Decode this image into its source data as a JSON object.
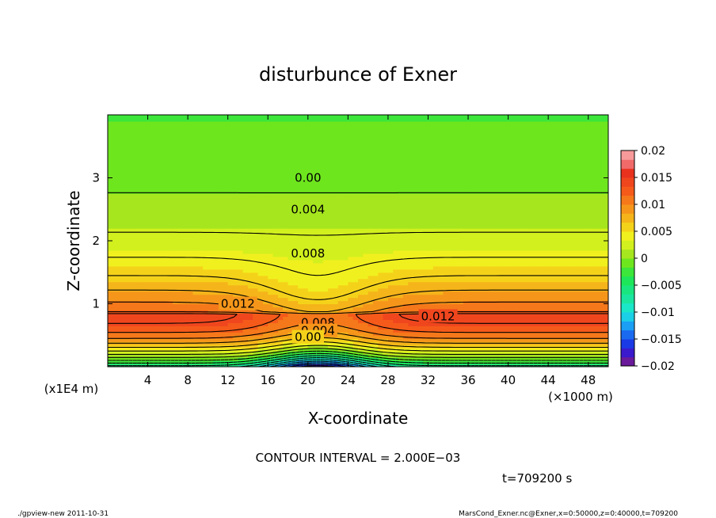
{
  "chart_data": {
    "type": "heatmap",
    "title": "disturbunce of Exner",
    "xlabel": "X-coordinate",
    "ylabel": "Z-coordinate",
    "x_scale_note": "(×1000 m)",
    "y_scale_note": "(x1E4 m)",
    "xlim": [
      0,
      50000
    ],
    "ylim": [
      0,
      40000
    ],
    "x_ticks": [
      {
        "value": 4000,
        "label": "4"
      },
      {
        "value": 8000,
        "label": "8"
      },
      {
        "value": 12000,
        "label": "12"
      },
      {
        "value": 16000,
        "label": "16"
      },
      {
        "value": 20000,
        "label": "20"
      },
      {
        "value": 24000,
        "label": "24"
      },
      {
        "value": 28000,
        "label": "28"
      },
      {
        "value": 32000,
        "label": "32"
      },
      {
        "value": 36000,
        "label": "36"
      },
      {
        "value": 40000,
        "label": "40"
      },
      {
        "value": 44000,
        "label": "44"
      },
      {
        "value": 48000,
        "label": "48"
      }
    ],
    "y_ticks": [
      {
        "value": 10000,
        "label": "1"
      },
      {
        "value": 20000,
        "label": "2"
      },
      {
        "value": 30000,
        "label": "3"
      }
    ],
    "colorbar": {
      "min": -0.02,
      "max": 0.02,
      "labels": [
        {
          "value": 0.02,
          "label": "0.02"
        },
        {
          "value": 0.015,
          "label": "0.015"
        },
        {
          "value": 0.01,
          "label": "0.01"
        },
        {
          "value": 0.005,
          "label": "0.005"
        },
        {
          "value": 0,
          "label": "0"
        },
        {
          "value": -0.005,
          "label": "−0.005"
        },
        {
          "value": -0.01,
          "label": "−0.01"
        },
        {
          "value": -0.015,
          "label": "−0.015"
        },
        {
          "value": -0.02,
          "label": "−0.02"
        }
      ],
      "colors": [
        "#6a1a9a",
        "#3a1acc",
        "#1a3ae6",
        "#1a6af0",
        "#1a9ff5",
        "#1acfe6",
        "#1ae6c8",
        "#1ae6a0",
        "#1ae680",
        "#1ee65a",
        "#3ce63a",
        "#6ee61e",
        "#a6e61e",
        "#d2f01e",
        "#f0f01e",
        "#f5d21a",
        "#f5b41a",
        "#f5961a",
        "#f5781a",
        "#f55a1a",
        "#f0461e",
        "#e8321e",
        "#f06a6a",
        "#f89a9a"
      ]
    },
    "contour_labels": [
      {
        "x": 20000,
        "z": 30000,
        "label": "0.00"
      },
      {
        "x": 20000,
        "z": 25000,
        "label": "0.004"
      },
      {
        "x": 20000,
        "z": 18000,
        "label": "0.008"
      },
      {
        "x": 13000,
        "z": 10000,
        "label": "0.012"
      },
      {
        "x": 33000,
        "z": 8000,
        "label": "0.012"
      },
      {
        "x": 21000,
        "z": 7000,
        "label": "0.008"
      },
      {
        "x": 21000,
        "z": 5700,
        "label": "0.004"
      },
      {
        "x": 20000,
        "z": 4700,
        "label": "0.00"
      }
    ],
    "contour_interval_text": "CONTOUR INTERVAL = 2.000E−03",
    "time_text": "t=709200  s"
  },
  "footer": {
    "left": "./gpview-new   2011-10-31",
    "right": "MarsCond_Exner.nc@Exner,x=0:50000,z=0:40000,t=709200"
  }
}
